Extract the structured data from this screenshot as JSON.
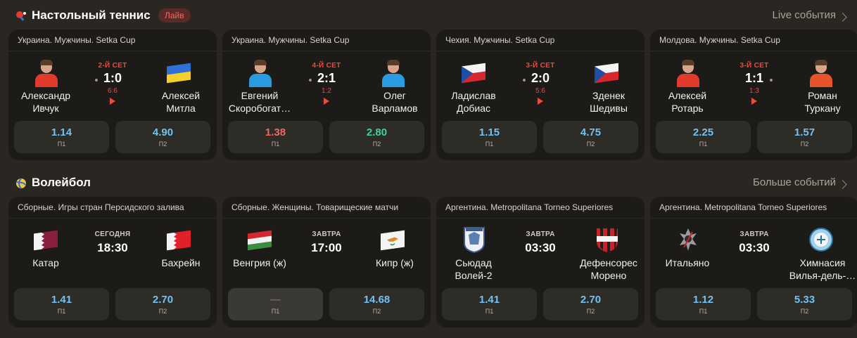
{
  "colors": {
    "bg": "#2a2722",
    "card": "#1c1b18",
    "odd": "#2e2c27",
    "live_red": "#ef4a3d",
    "odd_blue": "#72c1f2",
    "odd_down": "#f06a63",
    "odd_up": "#3ed39a"
  },
  "tennis": {
    "icon": "table-tennis-icon",
    "title": "Настольный теннис",
    "badge": "Лайв",
    "more": "Live события",
    "cards": [
      {
        "league": "Украина. Мужчины. Setka Cup",
        "set": "2-Й СЕТ",
        "score": "1:0",
        "sub": "6:6",
        "serve": "left",
        "p1": {
          "name1": "Александр",
          "name2": "Ивчук",
          "kind": "avatar",
          "shirt": "#e23b2b"
        },
        "p2": {
          "name1": "Алексей",
          "name2": "Митла",
          "kind": "flag",
          "flag": "ua"
        },
        "o1": {
          "value": "1.14",
          "label": "П1",
          "trend": ""
        },
        "o2": {
          "value": "4.90",
          "label": "П2",
          "trend": ""
        }
      },
      {
        "league": "Украина. Мужчины. Setka Cup",
        "set": "4-Й СЕТ",
        "score": "2:1",
        "sub": "1:2",
        "serve": "left",
        "p1": {
          "name1": "Евгений",
          "name2": "Скоробогат…",
          "kind": "avatar",
          "shirt": "#2a9be0"
        },
        "p2": {
          "name1": "Олег",
          "name2": "Варламов",
          "kind": "avatar",
          "shirt": "#2a9be0"
        },
        "o1": {
          "value": "1.38",
          "label": "П1",
          "trend": "down"
        },
        "o2": {
          "value": "2.80",
          "label": "П2",
          "trend": "up"
        }
      },
      {
        "league": "Чехия. Мужчины. Setka Cup",
        "set": "3-Й СЕТ",
        "score": "2:0",
        "sub": "5:6",
        "serve": "left",
        "p1": {
          "name1": "Ладислав",
          "name2": "Добиас",
          "kind": "flag",
          "flag": "cz"
        },
        "p2": {
          "name1": "Зденек",
          "name2": "Шедивы",
          "kind": "flag",
          "flag": "cz"
        },
        "o1": {
          "value": "1.15",
          "label": "П1",
          "trend": ""
        },
        "o2": {
          "value": "4.75",
          "label": "П2",
          "trend": ""
        }
      },
      {
        "league": "Молдова. Мужчины. Setka Cup",
        "set": "3-Й СЕТ",
        "score": "1:1",
        "sub": "1:3",
        "serve": "right",
        "p1": {
          "name1": "Алексей",
          "name2": "Ротарь",
          "kind": "avatar",
          "shirt": "#e23b2b"
        },
        "p2": {
          "name1": "Роман",
          "name2": "Туркану",
          "kind": "avatar",
          "shirt": "#e8542a"
        },
        "o1": {
          "value": "2.25",
          "label": "П1",
          "trend": ""
        },
        "o2": {
          "value": "1.57",
          "label": "П2",
          "trend": ""
        }
      }
    ]
  },
  "volleyball": {
    "icon": "volleyball-icon",
    "title": "Волейбол",
    "more": "Больше событий",
    "cards": [
      {
        "league": "Сборные. Игры стран Персидского залива",
        "when": "СЕГОДНЯ",
        "time": "18:30",
        "t1": {
          "name1": "Катар",
          "name2": "",
          "kind": "flag",
          "flag": "qa"
        },
        "t2": {
          "name1": "Бахрейн",
          "name2": "",
          "kind": "flag",
          "flag": "bh"
        },
        "o1": {
          "value": "1.41",
          "label": "П1",
          "trend": ""
        },
        "o2": {
          "value": "2.70",
          "label": "П2",
          "trend": ""
        }
      },
      {
        "league": "Сборные. Женщины. Товарищеские матчи",
        "when": "ЗАВТРА",
        "time": "17:00",
        "t1": {
          "name1": "Венгрия (ж)",
          "name2": "",
          "kind": "flag",
          "flag": "hu"
        },
        "t2": {
          "name1": "Кипр (ж)",
          "name2": "",
          "kind": "flag",
          "flag": "cy"
        },
        "o1": {
          "value": "—",
          "label": "П1",
          "trend": "na"
        },
        "o2": {
          "value": "14.68",
          "label": "П2",
          "trend": ""
        }
      },
      {
        "league": "Аргентина. Metropolitana Torneo Superiores",
        "when": "ЗАВТРА",
        "time": "03:30",
        "t1": {
          "name1": "Сьюдад",
          "name2": "Волей-2",
          "kind": "emblem",
          "flag": "ciudad"
        },
        "t2": {
          "name1": "Дефенсорес",
          "name2": "Морено",
          "kind": "emblem",
          "flag": "defensores"
        },
        "o1": {
          "value": "1.41",
          "label": "П1",
          "trend": ""
        },
        "o2": {
          "value": "2.70",
          "label": "П2",
          "trend": ""
        }
      },
      {
        "league": "Аргентина. Metropolitana Torneo Superiores",
        "when": "ЗАВТРА",
        "time": "03:30",
        "t1": {
          "name1": "Итальяно",
          "name2": "",
          "kind": "emblem",
          "flag": "italiano"
        },
        "t2": {
          "name1": "Химнасия",
          "name2": "Вилья-дель-…",
          "kind": "emblem",
          "flag": "gimnasia"
        },
        "o1": {
          "value": "1.12",
          "label": "П1",
          "trend": ""
        },
        "o2": {
          "value": "5.33",
          "label": "П2",
          "trend": ""
        }
      }
    ]
  }
}
